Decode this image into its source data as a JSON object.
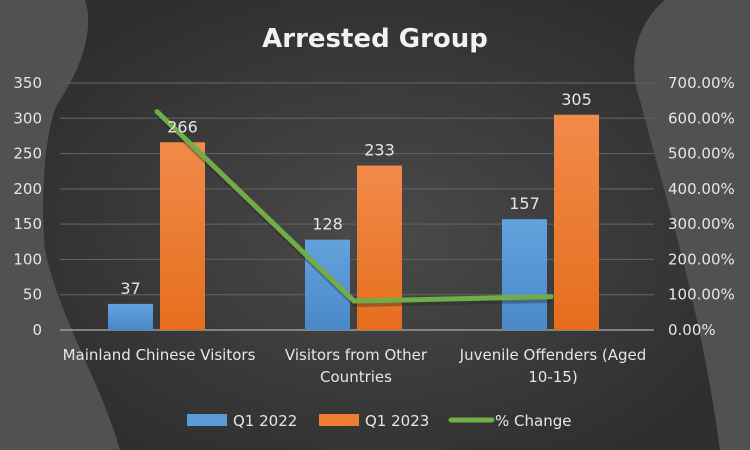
{
  "chart_data": {
    "type": "bar",
    "title": "Arrested Group",
    "categories": [
      "Mainland Chinese Visitors",
      "Visitors from Other Countries",
      "Juvenile Offenders (Aged 10-15)"
    ],
    "category_lines": [
      [
        "Mainland Chinese Visitors"
      ],
      [
        "Visitors from Other",
        "Countries"
      ],
      [
        "Juvenile Offenders (Aged",
        "10-15)"
      ]
    ],
    "series": [
      {
        "name": "Q1 2022",
        "type": "bar",
        "axis": "primary",
        "color": "#5b9bd5",
        "values": [
          37,
          128,
          157
        ]
      },
      {
        "name": "Q1 2023",
        "type": "bar",
        "axis": "primary",
        "color": "#ed7d31",
        "values": [
          266,
          233,
          305
        ]
      },
      {
        "name": "% Change",
        "type": "line",
        "axis": "secondary",
        "color": "#70ad47",
        "values": [
          618.92,
          82.03,
          94.27
        ]
      }
    ],
    "xlabel": "",
    "ylabel": "",
    "ylim": [
      0,
      350
    ],
    "yticks": [
      "0",
      "50",
      "100",
      "150",
      "200",
      "250",
      "300",
      "350"
    ],
    "y2lim": [
      0,
      700
    ],
    "y2ticks": [
      "0.00%",
      "100.00%",
      "200.00%",
      "300.00%",
      "400.00%",
      "500.00%",
      "600.00%",
      "700.00%"
    ],
    "data_labels": {
      "Q1 2022": [
        "37",
        "128",
        "157"
      ],
      "Q1 2023": [
        "266",
        "233",
        "305"
      ]
    },
    "grid": true,
    "legend_position": "bottom"
  }
}
